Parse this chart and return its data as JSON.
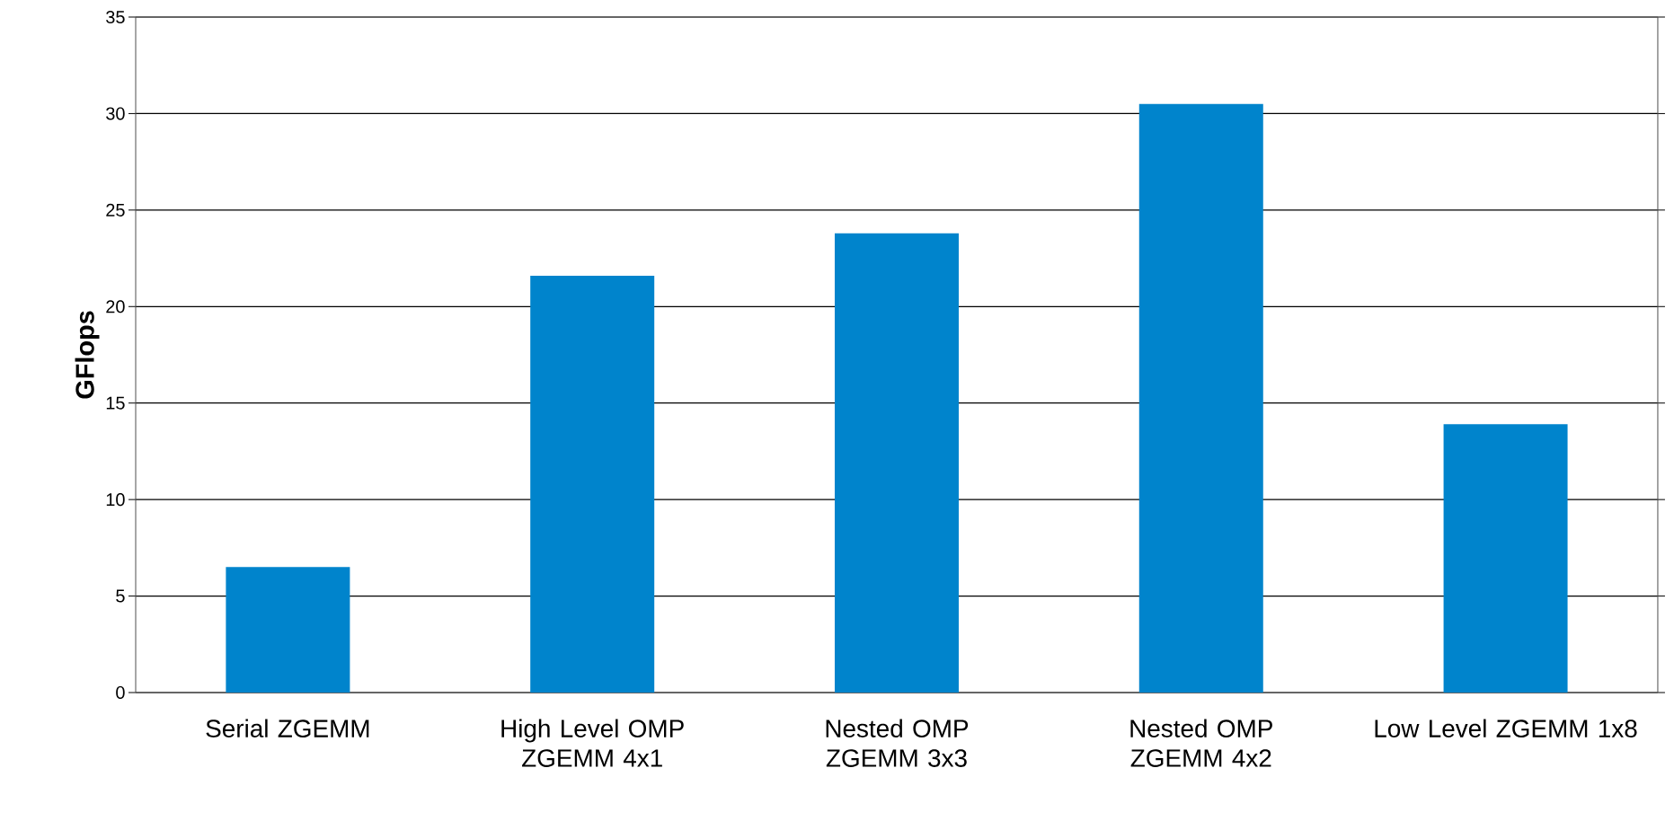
{
  "chart_data": {
    "type": "bar",
    "ylabel": "GFlops",
    "categories": [
      "Serial ZGEMM",
      "High Level OMP ZGEMM 4x1",
      "Nested OMP ZGEMM 3x3",
      "Nested OMP ZGEMM 4x2",
      "Low Level ZGEMM 1x8"
    ],
    "values": [
      6.5,
      21.6,
      23.8,
      30.5,
      13.9
    ],
    "color": "#0084cc",
    "ylim": [
      0,
      35
    ],
    "yticks": [
      0,
      5,
      10,
      15,
      20,
      25,
      30,
      35
    ],
    "grid": "y"
  }
}
